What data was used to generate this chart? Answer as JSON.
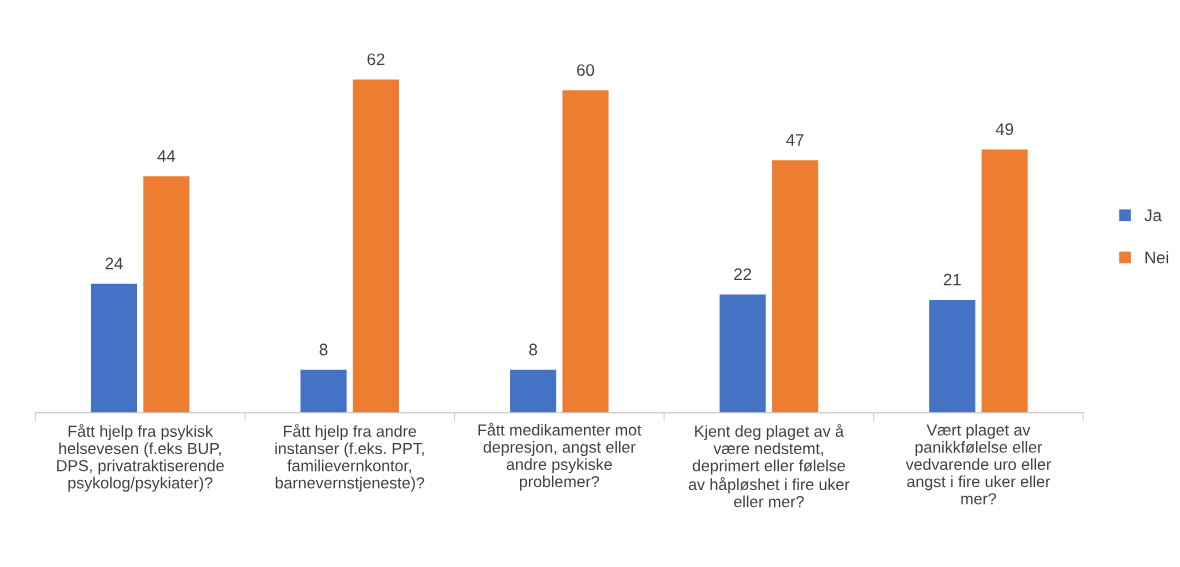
{
  "chart_data": {
    "type": "bar",
    "categories": [
      "Fått hjelp fra psykisk\nhelsevesen (f.eks BUP,\nDPS, privatraktiserende\npsykolog/psykiater)?",
      "Fått hjelp fra andre\ninstanser (f.eks. PPT,\nfamilievernkontor,\nbarnevernstjeneste)?",
      "Fått medikamenter mot\ndepresjon, angst eller\nandre psykiske\nproblemer?",
      "Kjent deg plaget av å\nvære nedstemt,\ndeprimert eller følelse\nav håpløshet i fire uker\neller mer?",
      "Vært plaget av\npanikkfølelse eller\nvedvarende uro eller\nangst i fire uker eller\nmer?"
    ],
    "series": [
      {
        "name": "Ja",
        "color": "#4472c4",
        "values": [
          24,
          8,
          8,
          22,
          21
        ]
      },
      {
        "name": "Nei",
        "color": "#ed7d31",
        "values": [
          44,
          62,
          60,
          47,
          49
        ]
      }
    ],
    "data_labels": true,
    "legend": "right"
  }
}
